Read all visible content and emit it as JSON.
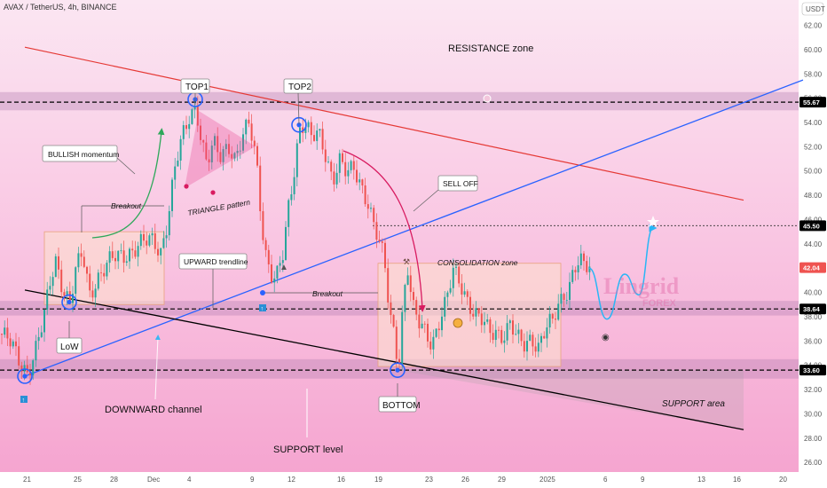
{
  "header": {
    "title": "AVAX / TetherUS, 4h, BINANCE",
    "currency": "USDT"
  },
  "brand": {
    "logo_text": "Lingrid",
    "logo_sub": "FOREX"
  },
  "colors": {
    "bull": "#26a69a",
    "bear": "#ef5350",
    "resistance_line": "#e53935",
    "upward_line": "#2962ff",
    "downward_line": "#000000",
    "projection": "#29b6f6",
    "bg_top": "#fbe4f1",
    "bg_bottom": "#f4a3cf"
  },
  "chart_data": {
    "type": "candlestick",
    "x_ticks": [
      "21",
      "25",
      "28",
      "Dec",
      "4",
      "9",
      "12",
      "16",
      "19",
      "23",
      "26",
      "29",
      "2025",
      "6",
      "9",
      "13",
      "16",
      "20"
    ],
    "y_ticks": [
      26.0,
      28.0,
      30.0,
      32.0,
      34.0,
      36.0,
      38.0,
      40.0,
      42.0,
      44.0,
      46.0,
      48.0,
      50.0,
      52.0,
      54.0,
      56.0,
      58.0,
      60.0,
      62.0
    ],
    "ylim": [
      25.5,
      63.5
    ],
    "price_labels": [
      {
        "value": 55.67,
        "text": "55.67",
        "color": "#000000"
      },
      {
        "value": 45.5,
        "text": "45.50",
        "color": "#000000"
      },
      {
        "value": 42.04,
        "text": "42.04",
        "color": "#ef5350"
      },
      {
        "value": 38.64,
        "text": "38.64",
        "color": "#000000"
      },
      {
        "value": 33.6,
        "text": "33.60",
        "color": "#000000"
      }
    ],
    "horizontal_levels": [
      55.67,
      38.64,
      33.6
    ],
    "dotted_level": 45.5,
    "zones": [
      {
        "name": "resistance-zone",
        "from": 55.0,
        "to": 56.5
      },
      {
        "name": "middle-zone",
        "from": 38.1,
        "to": 39.3
      },
      {
        "name": "support-zone",
        "from": 32.9,
        "to": 34.5
      }
    ],
    "annotations": {
      "resistance_zone": "RESISTANCE zone",
      "top1": "TOP1",
      "top2": "TOP2",
      "bullish_momentum": "BULLISH momentum",
      "breakout_1": "Breakout",
      "triangle": "TRIANGLE pattern",
      "upward_trendline": "UPWARD trendline",
      "breakout_2": "Breakout",
      "sell_off": "SELL OFF",
      "consolidation": "CONSOLIDATION zone",
      "low": "LoW",
      "downward_channel": "DOWNWARD channel",
      "bottom": "BOTTOM",
      "support_area": "SUPPORT area",
      "support_level": "SUPPORT level"
    },
    "price_path": [
      [
        0,
        36.6
      ],
      [
        10,
        35.8
      ],
      [
        22,
        34.2
      ],
      [
        30,
        33.6
      ],
      [
        38,
        35.0
      ],
      [
        48,
        37.5
      ],
      [
        56,
        41.0
      ],
      [
        62,
        42.8
      ],
      [
        70,
        40.5
      ],
      [
        78,
        39.0
      ],
      [
        84,
        41.5
      ],
      [
        92,
        43.2
      ],
      [
        100,
        40.0
      ],
      [
        108,
        41.2
      ],
      [
        118,
        42.0
      ],
      [
        128,
        42.8
      ],
      [
        138,
        43.2
      ],
      [
        150,
        43.6
      ],
      [
        162,
        44.0
      ],
      [
        172,
        44.3
      ],
      [
        180,
        43.5
      ],
      [
        188,
        46.0
      ],
      [
        196,
        50.0
      ],
      [
        204,
        52.5
      ],
      [
        212,
        54.5
      ],
      [
        220,
        55.6
      ],
      [
        226,
        52.5
      ],
      [
        232,
        50.5
      ],
      [
        240,
        52.0
      ],
      [
        248,
        51.2
      ],
      [
        256,
        52.5
      ],
      [
        264,
        51.0
      ],
      [
        272,
        52.5
      ],
      [
        280,
        53.8
      ],
      [
        288,
        51.0
      ],
      [
        294,
        46.0
      ],
      [
        298,
        43.5
      ],
      [
        304,
        41.5
      ],
      [
        310,
        40.8
      ],
      [
        318,
        43.0
      ],
      [
        324,
        47.0
      ],
      [
        330,
        50.0
      ],
      [
        336,
        53.5
      ],
      [
        342,
        54.0
      ],
      [
        350,
        52.5
      ],
      [
        358,
        53.0
      ],
      [
        366,
        51.5
      ],
      [
        374,
        49.5
      ],
      [
        382,
        50.8
      ],
      [
        390,
        49.5
      ],
      [
        398,
        50.2
      ],
      [
        406,
        49.0
      ],
      [
        414,
        47.5
      ],
      [
        420,
        45.5
      ],
      [
        426,
        44.0
      ],
      [
        432,
        42.5
      ],
      [
        438,
        38.5
      ],
      [
        444,
        36.5
      ],
      [
        448,
        33.9
      ],
      [
        452,
        38.0
      ],
      [
        458,
        42.2
      ],
      [
        464,
        38.5
      ],
      [
        470,
        37.5
      ],
      [
        478,
        37.0
      ],
      [
        486,
        36.0
      ],
      [
        494,
        37.5
      ],
      [
        502,
        39.0
      ],
      [
        510,
        41.8
      ],
      [
        518,
        41.0
      ],
      [
        526,
        39.5
      ],
      [
        534,
        38.0
      ],
      [
        542,
        37.5
      ],
      [
        550,
        36.8
      ],
      [
        558,
        37.0
      ],
      [
        566,
        36.5
      ],
      [
        574,
        37.2
      ],
      [
        582,
        36.0
      ],
      [
        590,
        35.8
      ],
      [
        598,
        36.5
      ],
      [
        606,
        35.5
      ],
      [
        614,
        36.8
      ],
      [
        622,
        37.5
      ],
      [
        628,
        39.0
      ],
      [
        634,
        40.0
      ],
      [
        640,
        40.5
      ],
      [
        646,
        42.0
      ],
      [
        652,
        42.3
      ],
      [
        658,
        42.0
      ],
      [
        664,
        42.0
      ]
    ],
    "projection_path": [
      [
        664,
        42.0
      ],
      [
        684,
        37.8
      ],
      [
        704,
        41.5
      ],
      [
        720,
        39.8
      ],
      [
        736,
        45.3
      ]
    ],
    "trendlines": {
      "resistance": [
        [
          28,
          60.2
        ],
        [
          838,
          47.6
        ]
      ],
      "upward": [
        [
          28,
          33.1
        ],
        [
          905,
          57.5
        ]
      ],
      "downward": [
        [
          28,
          40.2
        ],
        [
          838,
          28.7
        ]
      ]
    },
    "boxes": [
      {
        "name": "bullish-box",
        "x1": 50,
        "x2": 185,
        "y_from": 39.0,
        "y_to": 45.0
      },
      {
        "name": "consolidation-box",
        "x1": 426,
        "x2": 632,
        "y_from": 33.9,
        "y_to": 42.4
      }
    ]
  }
}
